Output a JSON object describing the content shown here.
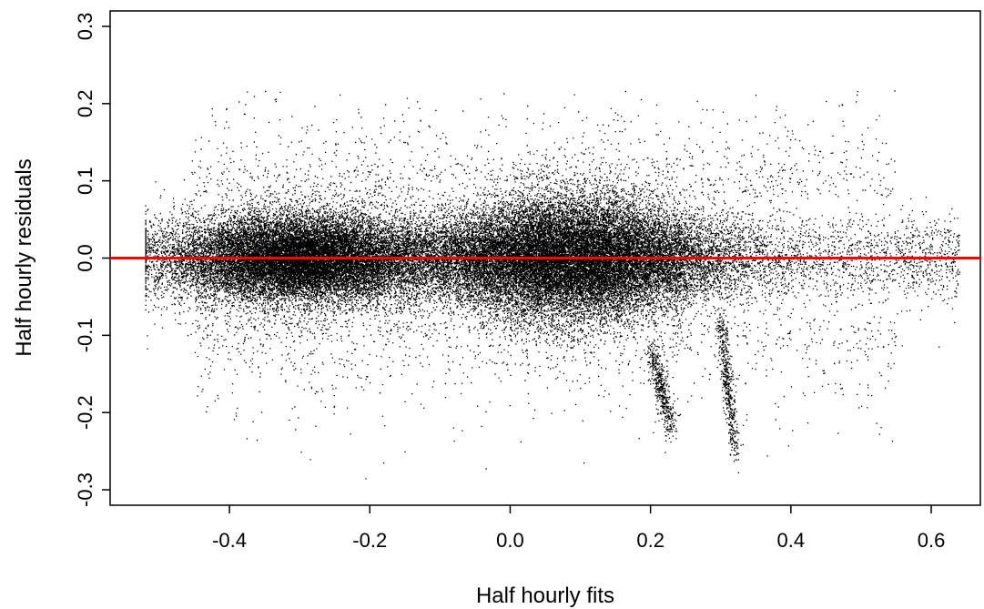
{
  "chart_data": {
    "type": "scatter",
    "title": "",
    "xlabel": "Half hourly fits",
    "ylabel": "Half hourly residuals",
    "xlim": [
      -0.57,
      0.67
    ],
    "ylim": [
      -0.32,
      0.32
    ],
    "x_ticks": [
      -0.4,
      -0.2,
      0.0,
      0.2,
      0.4,
      0.6
    ],
    "x_tick_labels": [
      "-0.4",
      "-0.2",
      "0.0",
      "0.2",
      "0.4",
      "0.6"
    ],
    "y_ticks": [
      -0.3,
      -0.2,
      -0.1,
      0.0,
      0.1,
      0.2,
      0.3
    ],
    "y_tick_labels": [
      "-0.3",
      "-0.2",
      "-0.1",
      "0.0",
      "0.1",
      "0.2",
      "0.3"
    ],
    "grid": false,
    "reference_line": {
      "y": 0.0,
      "color": "#ff0000"
    },
    "point_color": "#000000",
    "series": [
      {
        "density_model": "dense cloud of residuals centered on 0 across x from about -0.52 to 0.64; two dense clusters near x≈-0.3 and x≈0.08; sparse tails reaching about ±0.3",
        "approx_count": 60000,
        "x_range": [
          -0.52,
          0.64
        ],
        "y_range": [
          -0.3,
          0.22
        ]
      }
    ]
  }
}
